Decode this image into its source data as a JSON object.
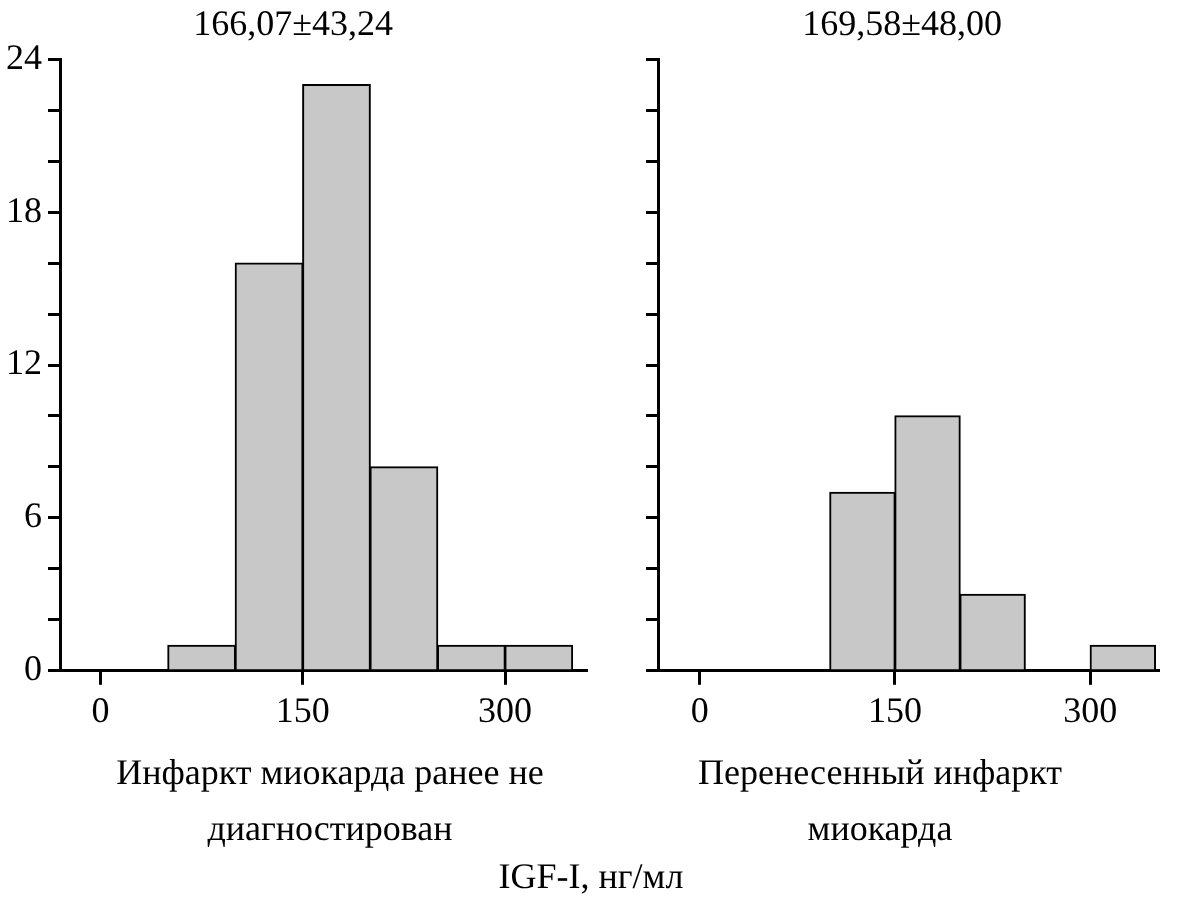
{
  "chart_data": [
    {
      "type": "histogram",
      "title": "166,07±43,24",
      "xlabel": "Инфаркт миокарда ранее не диагностирован",
      "bins": [
        50,
        100,
        150,
        200,
        250,
        300,
        350
      ],
      "values": [
        1,
        16,
        23,
        8,
        1,
        1
      ],
      "color": "#c8c8c8",
      "xlim": [
        -30,
        360
      ],
      "xticks": [
        0,
        150,
        300
      ],
      "ylim": [
        0,
        24
      ],
      "yticks": [
        0,
        {
          "value": 2,
          "label": null
        },
        {
          "value": 4,
          "label": null
        },
        6,
        {
          "value": 8,
          "label": null
        },
        {
          "value": 10,
          "label": null
        },
        12,
        {
          "value": 14,
          "label": null
        },
        {
          "value": 16,
          "label": null
        },
        18,
        {
          "value": 20,
          "label": null
        },
        {
          "value": 22,
          "label": null
        },
        24
      ],
      "grid": false,
      "legend": false,
      "annotations": [
        "IGF-I, нг/мл"
      ]
    },
    {
      "type": "histogram",
      "title": "169,58±48,00",
      "xlabel": "Перенесенный инфаркт миокарда",
      "bins": [
        50,
        100,
        150,
        200,
        250,
        300,
        350
      ],
      "values": [
        0,
        7,
        10,
        3,
        0,
        1
      ],
      "color": "#c8c8c8",
      "xlim": [
        -32,
        352
      ],
      "xticks": [
        0,
        150,
        300
      ],
      "ylim": [
        0,
        24
      ],
      "yticks": [
        0,
        {
          "value": 2,
          "label": null
        },
        {
          "value": 4,
          "label": null
        },
        6,
        {
          "value": 8,
          "label": null
        },
        {
          "value": 10,
          "label": null
        },
        12,
        {
          "value": 14,
          "label": null
        },
        {
          "value": 16,
          "label": null
        },
        18,
        {
          "value": 20,
          "label": null
        },
        {
          "value": 22,
          "label": null
        },
        24
      ],
      "grid": false,
      "legend": false,
      "tick_labels": "x"
    }
  ]
}
